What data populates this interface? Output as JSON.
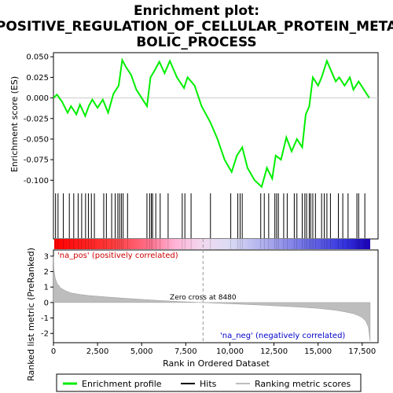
{
  "title_lines": [
    "Enrichment plot:",
    "POSITIVE_REGULATION_OF_CELLULAR_PROTEIN_META",
    "BOLIC_PROCESS"
  ],
  "chart_data": {
    "type": "line",
    "es_panel": {
      "ylabel": "Enrichment score (ES)",
      "ylim": [
        -0.115,
        0.055
      ],
      "yticks": [
        0.05,
        0.025,
        0.0,
        -0.025,
        -0.05,
        -0.075,
        -0.1
      ],
      "ytick_labels": [
        "0.050",
        "0.025",
        "0.000",
        "-0.025",
        "-0.050",
        "-0.075",
        "-0.100"
      ],
      "series_name": "Enrichment profile",
      "color": "#00ee00",
      "x": [
        0,
        200,
        500,
        800,
        1000,
        1300,
        1500,
        1800,
        2000,
        2200,
        2500,
        2800,
        3100,
        3400,
        3700,
        3900,
        4100,
        4400,
        4700,
        5000,
        5300,
        5500,
        5700,
        6000,
        6300,
        6600,
        7000,
        7400,
        7600,
        8000,
        8400,
        8900,
        9300,
        9700,
        10100,
        10400,
        10700,
        11000,
        11400,
        11800,
        12100,
        12400,
        12600,
        12900,
        13200,
        13500,
        13800,
        14100,
        14300,
        14500,
        14700,
        15000,
        15200,
        15500,
        15800,
        16000,
        16200,
        16500,
        16800,
        17000,
        17300,
        17600,
        17900
      ],
      "y": [
        0.0,
        0.004,
        -0.005,
        -0.018,
        -0.01,
        -0.02,
        -0.008,
        -0.022,
        -0.01,
        -0.002,
        -0.012,
        -0.002,
        -0.018,
        0.005,
        0.015,
        0.046,
        0.038,
        0.028,
        0.01,
        0.0,
        -0.01,
        0.025,
        0.032,
        0.044,
        0.03,
        0.045,
        0.025,
        0.012,
        0.025,
        0.015,
        -0.01,
        -0.03,
        -0.05,
        -0.075,
        -0.09,
        -0.07,
        -0.06,
        -0.085,
        -0.1,
        -0.108,
        -0.085,
        -0.098,
        -0.07,
        -0.075,
        -0.048,
        -0.065,
        -0.05,
        -0.06,
        -0.02,
        -0.01,
        0.025,
        0.015,
        0.025,
        0.045,
        0.03,
        0.02,
        0.025,
        0.015,
        0.025,
        0.01,
        0.02,
        0.01,
        0.0
      ]
    },
    "hits": [
      120,
      260,
      560,
      900,
      1150,
      1400,
      1600,
      1820,
      1980,
      2150,
      2320,
      2850,
      3000,
      3300,
      3500,
      3650,
      3750,
      3850,
      3950,
      4200,
      5300,
      5450,
      5550,
      5620,
      5800,
      6050,
      6500,
      7300,
      7450,
      7800,
      8900,
      10050,
      10450,
      10580,
      10700,
      11750,
      11950,
      12200,
      12550,
      12650,
      12750,
      13050,
      13250,
      13650,
      13800,
      14100,
      14250,
      14350,
      14500,
      14580,
      14700,
      14850,
      15200,
      15350,
      15500,
      15700,
      16150,
      16400,
      16700,
      17200,
      17300,
      17650
    ],
    "rank_panel": {
      "ylabel": "Ranked list metric (PreRanked)",
      "ylim": [
        -2.6,
        3.4
      ],
      "yticks": [
        3,
        2,
        1,
        0,
        -1,
        -2
      ],
      "ytick_labels": [
        "3",
        "2",
        "1",
        "0",
        "-1",
        "-2"
      ],
      "x": [
        0,
        30,
        100,
        200,
        400,
        700,
        1000,
        1500,
        2000,
        3000,
        4000,
        5000,
        6000,
        7000,
        8000,
        8480,
        9000,
        10000,
        11000,
        12000,
        13000,
        14000,
        15000,
        16000,
        16500,
        17000,
        17300,
        17500,
        17700,
        17850,
        17950
      ],
      "y": [
        3.0,
        2.1,
        1.6,
        1.25,
        0.95,
        0.75,
        0.62,
        0.52,
        0.45,
        0.36,
        0.28,
        0.2,
        0.13,
        0.07,
        0.02,
        0.0,
        -0.03,
        -0.08,
        -0.13,
        -0.18,
        -0.24,
        -0.3,
        -0.38,
        -0.5,
        -0.6,
        -0.72,
        -0.85,
        -0.98,
        -1.2,
        -1.6,
        -2.5
      ],
      "zero_cross": 8480,
      "zero_cross_label": "Zero cross at 8480",
      "pos_label": "'na_pos' (positively correlated)",
      "neg_label": "'na_neg' (negatively correlated)"
    },
    "xaxis": {
      "xlabel": "Rank in Ordered Dataset",
      "xlim": [
        0,
        18400
      ],
      "xticks": [
        0,
        2500,
        5000,
        7500,
        10000,
        12500,
        15000,
        17500
      ],
      "xtick_labels": [
        "0",
        "2,500",
        "5,000",
        "7,500",
        "10,000",
        "12,500",
        "15,000",
        "17,500"
      ],
      "n_genes": 17950
    },
    "legend": {
      "items": [
        "Enrichment profile",
        "Hits",
        "Ranking metric scores"
      ],
      "placement": "bottom"
    }
  }
}
